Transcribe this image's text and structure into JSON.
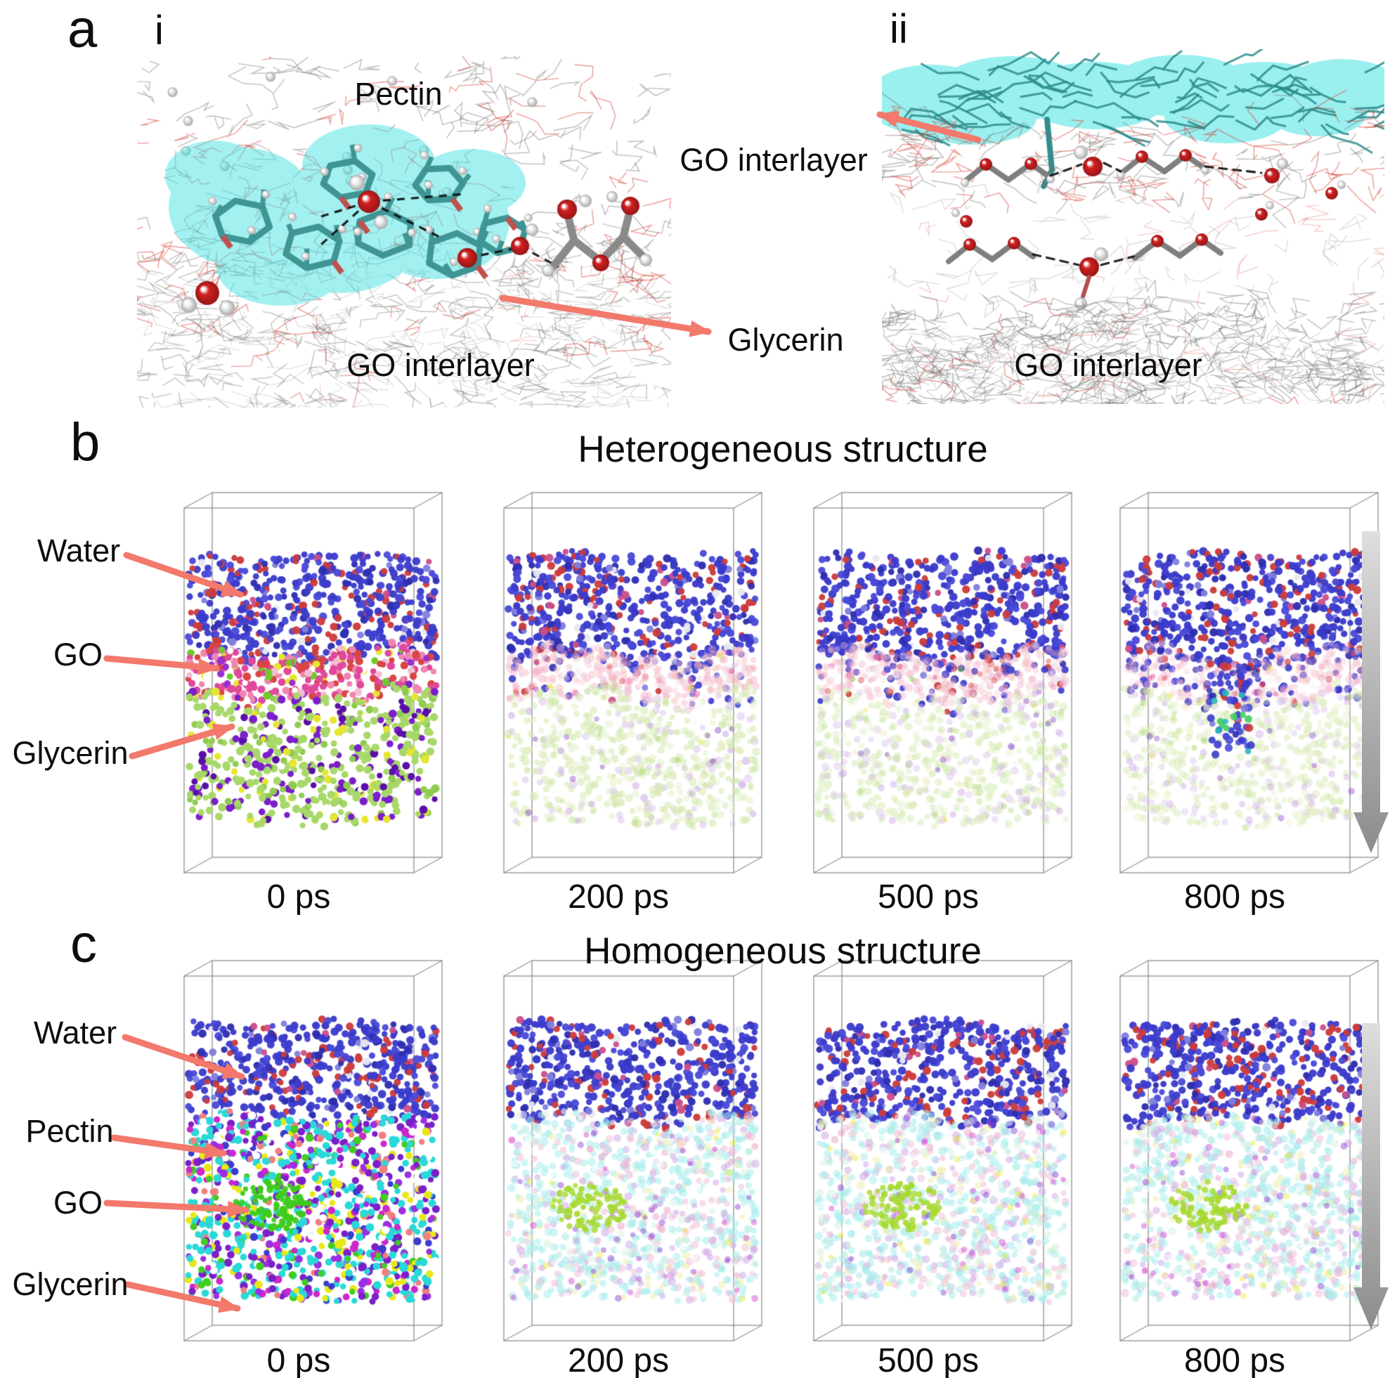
{
  "panel_a": {
    "label": "a",
    "sub_i": {
      "label": "i",
      "pectin": "Pectin",
      "go_interlayer": "GO interlayer"
    },
    "sub_ii": {
      "label": "ii",
      "go_interlayer_left": "GO interlayer",
      "go_interlayer_bottom": "GO interlayer"
    },
    "glycerin": "Glycerin"
  },
  "panel_b": {
    "label": "b",
    "title": "Heterogeneous structure",
    "layers": [
      {
        "name": "Water"
      },
      {
        "name": "GO"
      },
      {
        "name": "Glycerin"
      }
    ],
    "timepoints": [
      "0 ps",
      "200 ps",
      "500 ps",
      "800 ps"
    ]
  },
  "panel_c": {
    "label": "c",
    "title": "Homogeneous structure",
    "layers": [
      {
        "name": "Water"
      },
      {
        "name": "Pectin"
      },
      {
        "name": "GO"
      },
      {
        "name": "Glycerin"
      }
    ],
    "timepoints": [
      "0 ps",
      "200 ps",
      "500 ps",
      "800 ps"
    ]
  },
  "colors": {
    "annotation_arrow": "#f2796b",
    "highlight_cyan": "#48e2e2",
    "water_blue": "#3b3bcb",
    "water_oxygen_red": "#cc3b3b",
    "go_magenta": "#e0489b",
    "glycerin_green": "#a8d86a",
    "glycerin_purple": "#7b1fc9",
    "pectin_cyan": "#2ad8d8",
    "go_sheet_green": "#3ecb1c",
    "timeline_arrow_gray": "#8c8c8c"
  }
}
